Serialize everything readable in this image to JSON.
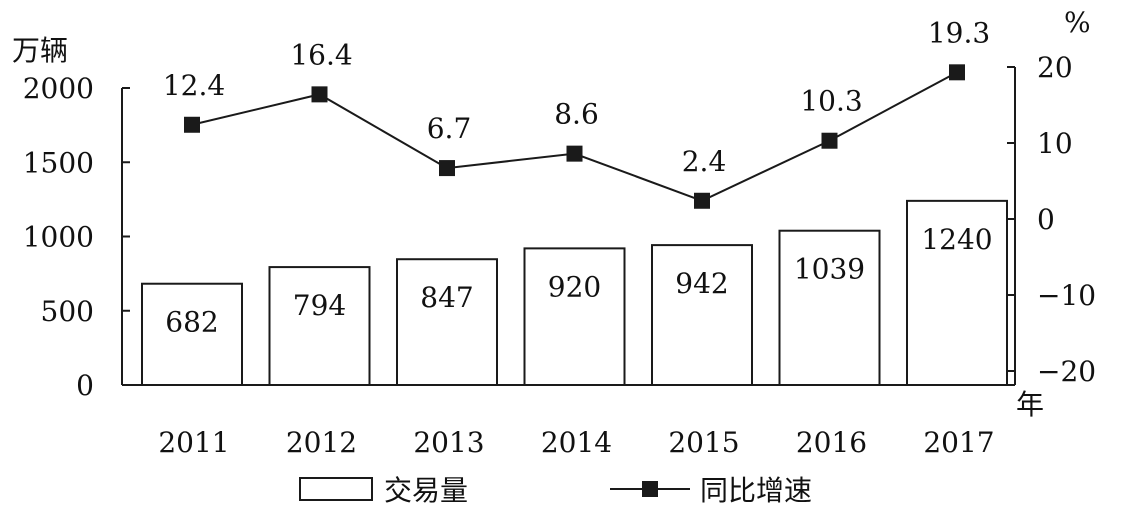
{
  "chart_data": {
    "type": "bar",
    "categories": [
      "2011",
      "2012",
      "2013",
      "2014",
      "2015",
      "2016",
      "2017"
    ],
    "series": [
      {
        "name": "交易量",
        "type": "bar",
        "axis": "left",
        "values": [
          682,
          794,
          847,
          920,
          942,
          1039,
          1240
        ]
      },
      {
        "name": "同比增速",
        "type": "line",
        "axis": "right",
        "values": [
          12.4,
          16.4,
          6.7,
          8.6,
          2.4,
          10.3,
          19.3
        ]
      }
    ],
    "left_axis": {
      "unit": "万辆",
      "ylim": [
        0,
        2000
      ],
      "ticks": [
        0,
        500,
        1000,
        1500,
        2000
      ]
    },
    "right_axis": {
      "unit": "%",
      "ylim": [
        -20,
        20
      ],
      "ticks": [
        -20,
        -10,
        0,
        10,
        20
      ]
    },
    "x_unit": "年",
    "legend": {
      "position": "bottom",
      "entries": [
        "交易量",
        "同比增速"
      ]
    },
    "grid": false,
    "colors": {
      "bar_fill": "#ffffff",
      "stroke": "#1a1a1a",
      "marker": "#1a1a1a"
    }
  }
}
